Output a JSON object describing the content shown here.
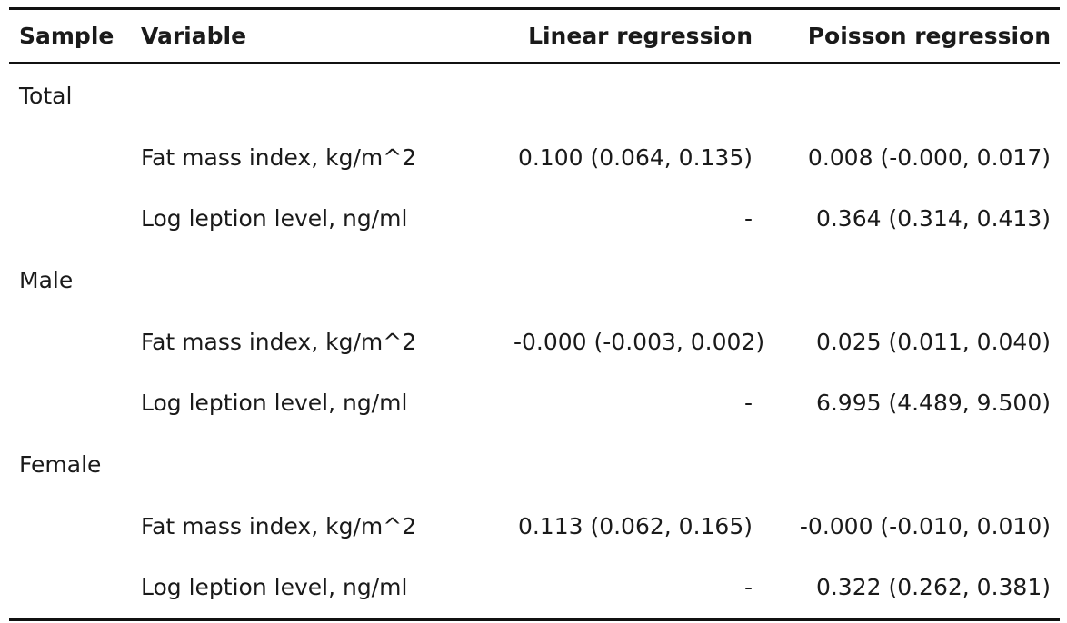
{
  "table": {
    "headers": {
      "sample": "Sample",
      "variable": "Variable",
      "linear": "Linear regression",
      "poisson": "Poisson regression"
    },
    "groups": [
      {
        "sample": "Total",
        "rows": [
          {
            "variable": "Fat mass index, kg/m^2",
            "linear": "0.100 (0.064, 0.135)",
            "poisson": "0.008 (-0.000, 0.017)"
          },
          {
            "variable": "Log leption level, ng/ml",
            "linear": "-",
            "poisson": "0.364 (0.314, 0.413)"
          }
        ]
      },
      {
        "sample": "Male",
        "rows": [
          {
            "variable": "Fat mass index, kg/m^2",
            "linear": "-0.000 (-0.003, 0.002)",
            "poisson": "0.025 (0.011, 0.040)"
          },
          {
            "variable": "Log leption level, ng/ml",
            "linear": "-",
            "poisson": "6.995 (4.489, 9.500)"
          }
        ]
      },
      {
        "sample": "Female",
        "rows": [
          {
            "variable": "Fat mass index, kg/m^2",
            "linear": "0.113 (0.062, 0.165)",
            "poisson": "-0.000 (-0.010, 0.010)"
          },
          {
            "variable": "Log leption level, ng/ml",
            "linear": "-",
            "poisson": "0.322 (0.262, 0.381)"
          }
        ]
      }
    ]
  }
}
